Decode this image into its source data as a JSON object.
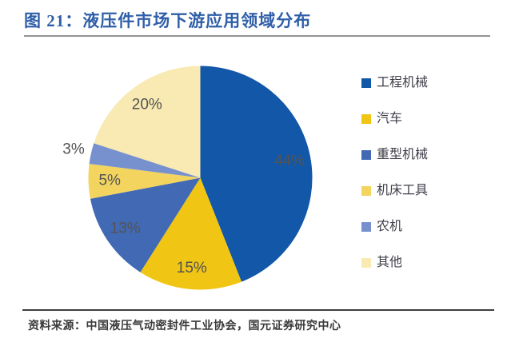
{
  "figure": {
    "title": "图 21：液压件市场下游应用领域分布",
    "source": "资料来源：中国液压气动密封件工业协会，国元证券研究中心"
  },
  "chart_data": {
    "type": "pie",
    "title": "液压件市场下游应用领域分布",
    "categories": [
      "工程机械",
      "汽车",
      "重型机械",
      "机床工具",
      "农机",
      "其他"
    ],
    "values": [
      44,
      15,
      13,
      5,
      3,
      20
    ],
    "unit": "%",
    "data_labels": [
      "44%",
      "15%",
      "13%",
      "5%",
      "3%",
      "20%"
    ],
    "colors": [
      "#1357A8",
      "#F0C514",
      "#4169B4",
      "#F2D45F",
      "#7791CE",
      "#F8EAB2"
    ],
    "label_color": "#535353",
    "legend_position": "right",
    "start_angle_deg": 0,
    "direction": "clockwise"
  }
}
